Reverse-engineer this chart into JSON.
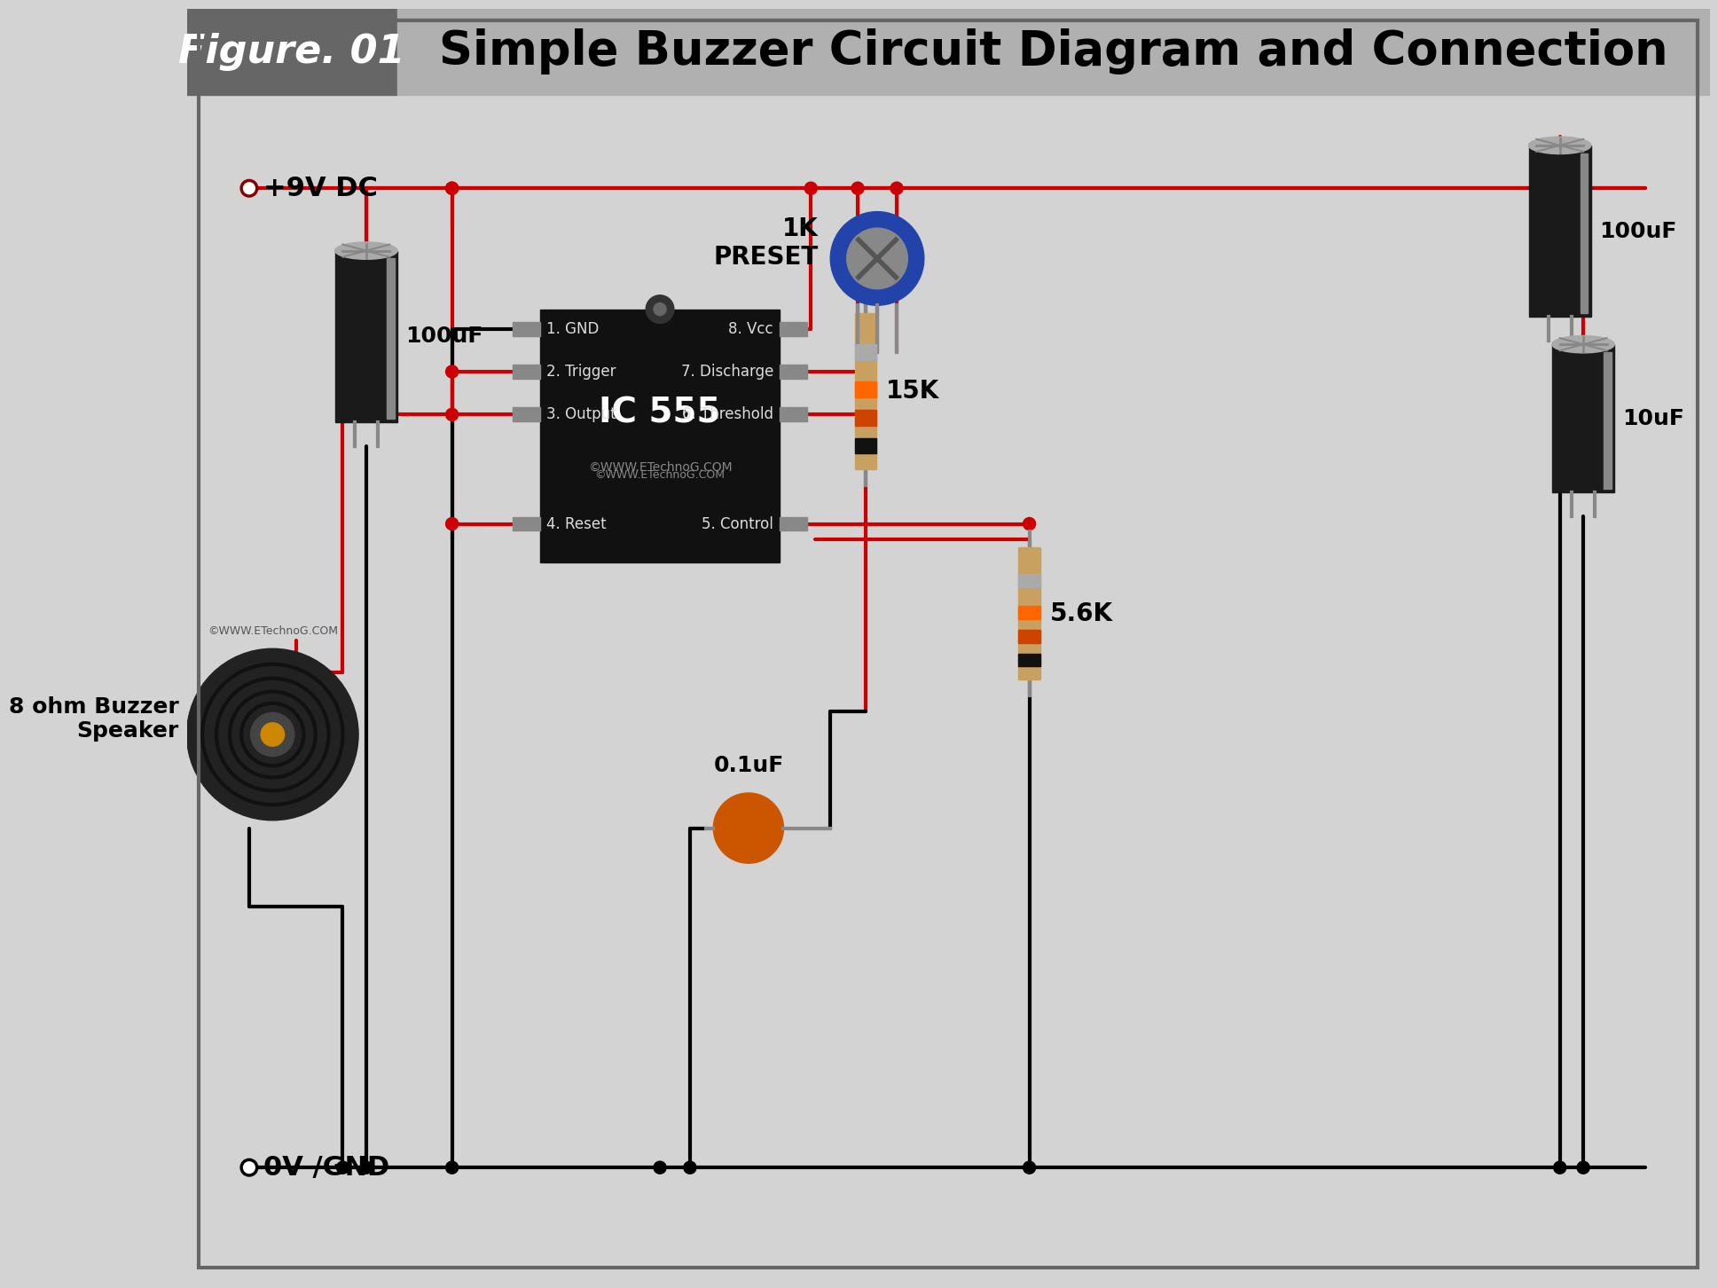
{
  "title": "Simple Buzzer Circuit Diagram and Connection",
  "figure_label": "Figure. 01",
  "bg_color": "#d3d3d3",
  "header_bg": "#666666",
  "header_text_color": "#ffffff",
  "title_color": "#000000",
  "wire_red": "#cc0000",
  "wire_black": "#000000",
  "ic_color": "#111111",
  "ic_text": "IC 555",
  "ic_pin_labels_left": [
    "1. GND",
    "2. Trigger",
    "3. Output",
    "4. Reset"
  ],
  "ic_pin_labels_right": [
    "8. Vcc",
    "7. Discharge",
    "6. Threshold",
    "5. Control"
  ],
  "cap_100uF_left_label": "100uF",
  "cap_100uF_right_label": "100uF",
  "cap_10uF_label": "10uF",
  "cap_01uF_label": "0.1uF",
  "resistor_15k_label": "15K",
  "resistor_56k_label": "5.6K",
  "preset_label": "1K\nPRESET",
  "buzzer_label": "8 ohm Buzzer\nSpeaker",
  "vcc_label": "+9V DC",
  "gnd_label": "0V /GND",
  "watermark": "©WWW.ETechnoG.COM"
}
